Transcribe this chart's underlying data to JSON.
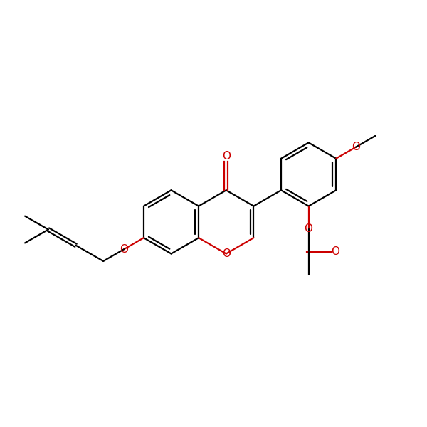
{
  "bg_color": "#ffffff",
  "bond_color": "#000000",
  "heteroatom_color": "#cc0000",
  "line_width": 1.6,
  "font_size": 11,
  "figsize": [
    6.0,
    6.0
  ],
  "dpi": 100,
  "xlim": [
    -0.5,
    9.5
  ],
  "ylim": [
    1.0,
    7.0
  ]
}
